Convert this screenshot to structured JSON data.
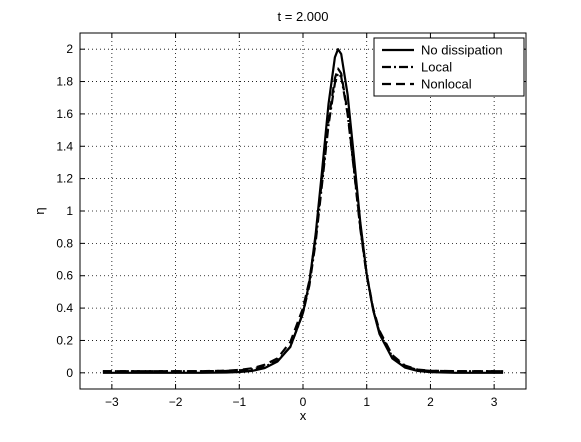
{
  "chart_data": {
    "type": "line",
    "title": "t = 2.000",
    "xlabel": "x",
    "ylabel": "η",
    "xlim": [
      -3.5,
      3.5
    ],
    "ylim": [
      -0.1,
      2.1
    ],
    "grid": true,
    "grid_style": "dotted",
    "legend_position": "top-right",
    "xticks": [
      -3,
      -2,
      -1,
      0,
      1,
      2,
      3
    ],
    "xtick_labels": [
      "−3",
      "−2",
      "−1",
      "0",
      "1",
      "2",
      "3"
    ],
    "yticks": [
      0,
      0.2,
      0.4,
      0.6,
      0.8,
      1,
      1.2,
      1.4,
      1.6,
      1.8,
      2
    ],
    "ytick_labels": [
      "0",
      "0.2",
      "0.4",
      "0.6",
      "0.8",
      "1",
      "1.2",
      "1.4",
      "1.6",
      "1.8",
      "2"
    ],
    "x": [
      -3.14,
      -2.8,
      -2.4,
      -2.0,
      -1.6,
      -1.2,
      -1.0,
      -0.8,
      -0.6,
      -0.4,
      -0.2,
      0.0,
      0.1,
      0.2,
      0.3,
      0.4,
      0.5,
      0.55,
      0.6,
      0.7,
      0.8,
      0.9,
      1.0,
      1.1,
      1.2,
      1.4,
      1.6,
      1.8,
      2.0,
      2.4,
      2.8,
      3.14
    ],
    "series": [
      {
        "name": "No dissipation",
        "style": "solid",
        "color": "#000000",
        "values": [
          0.0,
          0.0,
          0.0,
          0.0,
          0.0,
          0.002,
          0.005,
          0.012,
          0.03,
          0.07,
          0.16,
          0.37,
          0.56,
          0.86,
          1.25,
          1.66,
          1.95,
          2.0,
          1.97,
          1.72,
          1.33,
          0.93,
          0.61,
          0.39,
          0.24,
          0.09,
          0.033,
          0.012,
          0.004,
          0.0,
          0.0,
          0.0
        ]
      },
      {
        "name": "Local",
        "style": "dashdot",
        "color": "#000000",
        "values": [
          0.01,
          0.01,
          0.01,
          0.01,
          0.01,
          0.012,
          0.015,
          0.022,
          0.038,
          0.075,
          0.16,
          0.37,
          0.54,
          0.81,
          1.17,
          1.53,
          1.79,
          1.85,
          1.83,
          1.6,
          1.25,
          0.89,
          0.6,
          0.39,
          0.25,
          0.1,
          0.04,
          0.018,
          0.012,
          0.01,
          0.01,
          0.01
        ]
      },
      {
        "name": "Nonlocal",
        "style": "dashed",
        "color": "#000000",
        "values": [
          0.01,
          0.01,
          0.01,
          0.01,
          0.01,
          0.013,
          0.018,
          0.028,
          0.05,
          0.09,
          0.19,
          0.4,
          0.57,
          0.84,
          1.2,
          1.56,
          1.82,
          1.88,
          1.85,
          1.61,
          1.26,
          0.9,
          0.61,
          0.4,
          0.26,
          0.11,
          0.045,
          0.02,
          0.013,
          0.01,
          0.01,
          0.01
        ]
      }
    ]
  }
}
